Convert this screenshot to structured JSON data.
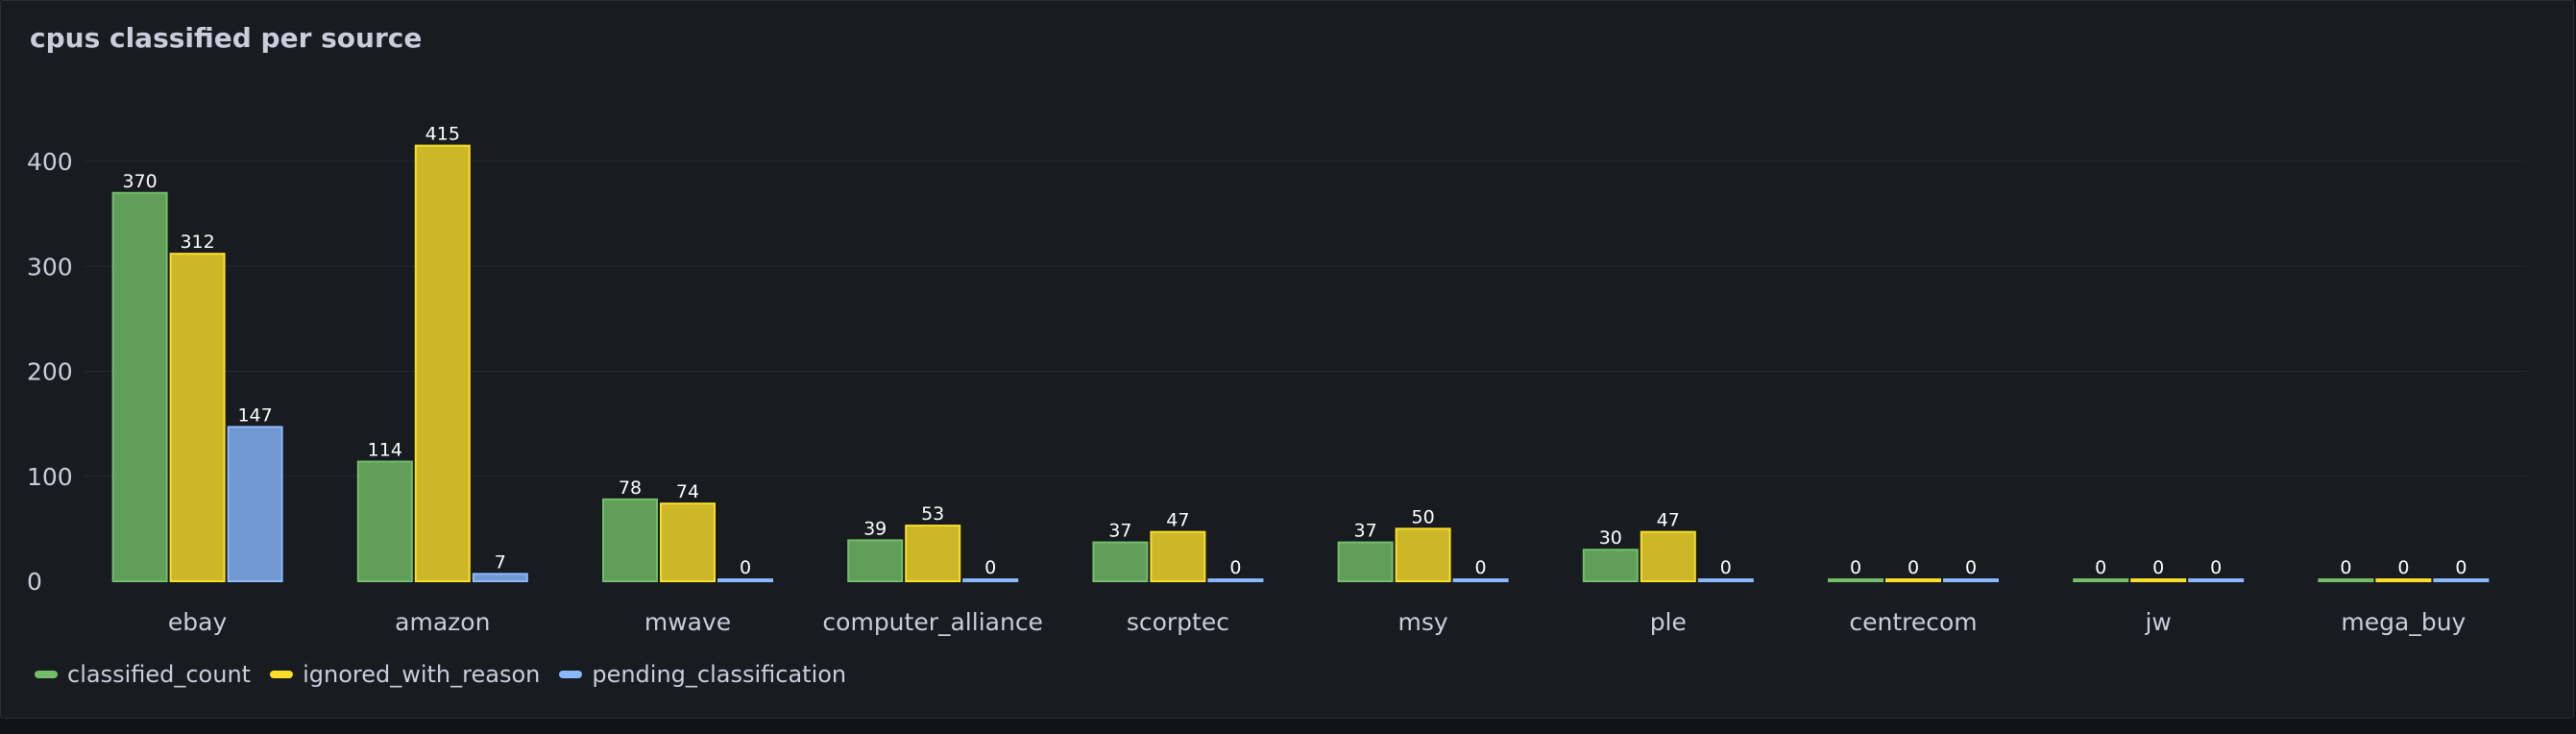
{
  "panel": {
    "title": "cpus classified per source"
  },
  "colors": {
    "background": "#181b1f",
    "grid": "#24272c",
    "text": "#ccccdc",
    "classified_count": "#73bf69",
    "ignored_with_reason": "#fade2a",
    "pending_classification": "#8ab8ff"
  },
  "chart_data": {
    "type": "bar",
    "title": "cpus classified per source",
    "xlabel": "",
    "ylabel": "",
    "ylim": [
      0,
      415
    ],
    "yticks": [
      0,
      100,
      200,
      300,
      400
    ],
    "grid": true,
    "legend_position": "bottom-left",
    "categories": [
      "ebay",
      "amazon",
      "mwave",
      "computer_alliance",
      "scorptec",
      "msy",
      "ple",
      "centrecom",
      "jw",
      "mega_buy"
    ],
    "series": [
      {
        "name": "classified_count",
        "color": "#73bf69",
        "values": [
          370,
          114,
          78,
          39,
          37,
          37,
          30,
          0,
          0,
          0
        ]
      },
      {
        "name": "ignored_with_reason",
        "color": "#fade2a",
        "values": [
          312,
          415,
          74,
          53,
          47,
          50,
          47,
          0,
          0,
          0
        ]
      },
      {
        "name": "pending_classification",
        "color": "#8ab8ff",
        "values": [
          147,
          7,
          0,
          0,
          0,
          0,
          0,
          0,
          0,
          0
        ]
      }
    ]
  }
}
